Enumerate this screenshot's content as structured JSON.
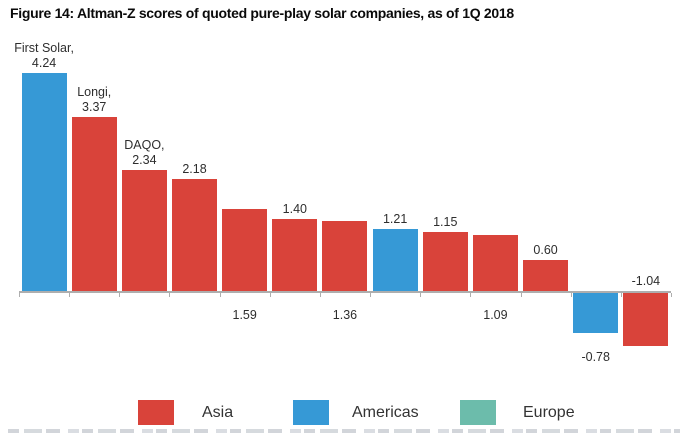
{
  "figure": {
    "title": "Figure 14: Altman-Z scores of quoted pure-play solar companies, as of 1Q 2018"
  },
  "chart_data": {
    "type": "bar",
    "title": "Figure 14: Altman-Z scores of quoted pure-play solar companies, as of 1Q 2018",
    "ylabel": "Altman-Z score",
    "ylim": [
      -1.5,
      4.5
    ],
    "grid": false,
    "axis_labels_shown": false,
    "legend_position": "bottom",
    "region_colors": {
      "Asia": "#d9433a",
      "Americas": "#3699d6",
      "Europe": "#6cbcab"
    },
    "legend": [
      "Asia",
      "Americas",
      "Europe"
    ],
    "bars": [
      {
        "name": "First Solar",
        "name_label": "First Solar,",
        "value": 4.24,
        "value_label": "4.24",
        "region": "Americas",
        "label_position": "above"
      },
      {
        "name": "Longi",
        "name_label": "Longi,",
        "value": 3.37,
        "value_label": "3.37",
        "region": "Asia",
        "label_position": "above"
      },
      {
        "name": "DAQO",
        "name_label": "DAQO,",
        "value": 2.34,
        "value_label": "2.34",
        "region": "Asia",
        "label_position": "above"
      },
      {
        "value": 2.18,
        "value_label": "2.18",
        "region": "Asia",
        "label_position": "above"
      },
      {
        "value": 1.59,
        "value_label": "1.59",
        "region": "Asia",
        "label_position": "below"
      },
      {
        "value": 1.4,
        "value_label": "1.40",
        "region": "Asia",
        "label_position": "above"
      },
      {
        "value": 1.36,
        "value_label": "1.36",
        "region": "Asia",
        "label_position": "below"
      },
      {
        "value": 1.21,
        "value_label": "1.21",
        "region": "Americas",
        "label_position": "above"
      },
      {
        "value": 1.15,
        "value_label": "1.15",
        "region": "Asia",
        "label_position": "above"
      },
      {
        "value": 1.09,
        "value_label": "1.09",
        "region": "Asia",
        "label_position": "below"
      },
      {
        "value": 0.6,
        "value_label": "0.60",
        "region": "Asia",
        "label_position": "above"
      },
      {
        "value": -0.78,
        "value_label": "-0.78",
        "region": "Americas",
        "label_position": "below"
      },
      {
        "value": -1.04,
        "value_label": "-1.04",
        "region": "Asia",
        "label_position": "above"
      }
    ]
  }
}
